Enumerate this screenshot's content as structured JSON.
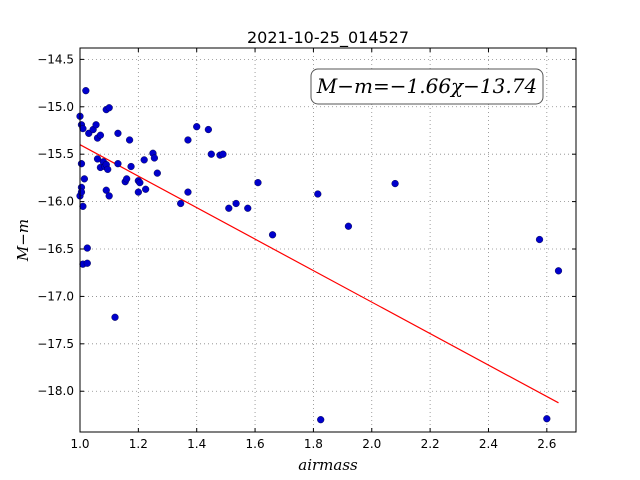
{
  "chart_data": {
    "type": "scatter",
    "title": "2021-10-25_014527",
    "xlabel": "airmass",
    "ylabel": "M−m",
    "xlim": [
      1.0,
      2.7
    ],
    "ylim": [
      -18.43,
      -14.38
    ],
    "xticks": [
      1.0,
      1.2,
      1.4,
      1.6,
      1.8,
      2.0,
      2.2,
      2.4,
      2.6
    ],
    "xtick_labels": [
      "1.0",
      "1.2",
      "1.4",
      "1.6",
      "1.8",
      "2.0",
      "2.2",
      "2.4",
      "2.6"
    ],
    "yticks": [
      -14.5,
      -15.0,
      -15.5,
      -16.0,
      -16.5,
      -17.0,
      -17.5,
      -18.0
    ],
    "ytick_labels": [
      "−14.5",
      "−15.0",
      "−15.5",
      "−16.0",
      "−16.5",
      "−17.0",
      "−17.5",
      "−18.0"
    ],
    "grid": true,
    "annotation": "M−m=−1.66χ−13.74",
    "points_color": "#0000cc",
    "fit_color": "#ff0000",
    "fit_line": {
      "slope": -1.66,
      "intercept": -13.74,
      "x_range": [
        1.0,
        2.64
      ]
    },
    "points": [
      {
        "x": 1.0,
        "y": -15.1
      },
      {
        "x": 1.005,
        "y": -15.19
      },
      {
        "x": 1.01,
        "y": -15.23
      },
      {
        "x": 1.02,
        "y": -14.83
      },
      {
        "x": 1.03,
        "y": -15.28
      },
      {
        "x": 1.045,
        "y": -15.24
      },
      {
        "x": 1.055,
        "y": -15.19
      },
      {
        "x": 1.06,
        "y": -15.33
      },
      {
        "x": 1.07,
        "y": -15.3
      },
      {
        "x": 1.09,
        "y": -15.03
      },
      {
        "x": 1.1,
        "y": -15.01
      },
      {
        "x": 1.13,
        "y": -15.28
      },
      {
        "x": 1.17,
        "y": -15.35
      },
      {
        "x": 1.005,
        "y": -15.6
      },
      {
        "x": 1.005,
        "y": -15.85
      },
      {
        "x": 1.0,
        "y": -15.94
      },
      {
        "x": 1.005,
        "y": -15.9
      },
      {
        "x": 1.01,
        "y": -16.05
      },
      {
        "x": 1.015,
        "y": -15.76
      },
      {
        "x": 1.025,
        "y": -16.49
      },
      {
        "x": 1.01,
        "y": -16.66
      },
      {
        "x": 1.025,
        "y": -16.65
      },
      {
        "x": 1.06,
        "y": -15.55
      },
      {
        "x": 1.07,
        "y": -15.64
      },
      {
        "x": 1.08,
        "y": -15.58
      },
      {
        "x": 1.085,
        "y": -15.63
      },
      {
        "x": 1.09,
        "y": -15.61
      },
      {
        "x": 1.095,
        "y": -15.66
      },
      {
        "x": 1.09,
        "y": -15.88
      },
      {
        "x": 1.1,
        "y": -15.94
      },
      {
        "x": 1.13,
        "y": -15.6
      },
      {
        "x": 1.155,
        "y": -15.79
      },
      {
        "x": 1.16,
        "y": -15.76
      },
      {
        "x": 1.175,
        "y": -15.63
      },
      {
        "x": 1.2,
        "y": -15.78
      },
      {
        "x": 1.205,
        "y": -15.8
      },
      {
        "x": 1.2,
        "y": -15.9
      },
      {
        "x": 1.225,
        "y": -15.87
      },
      {
        "x": 1.22,
        "y": -15.56
      },
      {
        "x": 1.25,
        "y": -15.49
      },
      {
        "x": 1.255,
        "y": -15.54
      },
      {
        "x": 1.265,
        "y": -15.7
      },
      {
        "x": 1.345,
        "y": -16.02
      },
      {
        "x": 1.37,
        "y": -15.9
      },
      {
        "x": 1.37,
        "y": -15.35
      },
      {
        "x": 1.4,
        "y": -15.21
      },
      {
        "x": 1.44,
        "y": -15.24
      },
      {
        "x": 1.45,
        "y": -15.5
      },
      {
        "x": 1.48,
        "y": -15.51
      },
      {
        "x": 1.49,
        "y": -15.5
      },
      {
        "x": 1.51,
        "y": -16.07
      },
      {
        "x": 1.535,
        "y": -16.02
      },
      {
        "x": 1.575,
        "y": -16.07
      },
      {
        "x": 1.61,
        "y": -15.8
      },
      {
        "x": 1.66,
        "y": -16.35
      },
      {
        "x": 1.815,
        "y": -15.92
      },
      {
        "x": 1.92,
        "y": -16.26
      },
      {
        "x": 2.08,
        "y": -15.81
      },
      {
        "x": 1.12,
        "y": -17.22
      },
      {
        "x": 1.825,
        "y": -18.3
      },
      {
        "x": 2.575,
        "y": -16.4
      },
      {
        "x": 2.6,
        "y": -18.29
      },
      {
        "x": 2.64,
        "y": -16.73
      }
    ]
  }
}
